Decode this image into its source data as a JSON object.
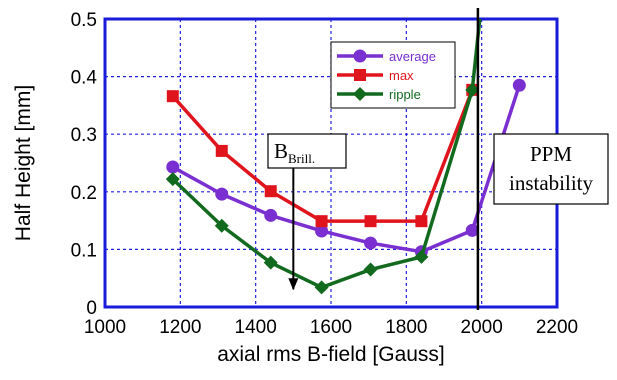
{
  "chart_data": {
    "type": "line",
    "xlabel": "axial rms B-field [Gauss]",
    "ylabel": "Half Height [mm]",
    "xlim": [
      1000,
      2200
    ],
    "ylim": [
      0,
      0.5
    ],
    "xticks": [
      1000,
      1200,
      1400,
      1600,
      1800,
      2000,
      2200
    ],
    "yticks": [
      0,
      0.1,
      0.2,
      0.3,
      0.4,
      0.5
    ],
    "xtick_labels": [
      "1000",
      "1200",
      "1400",
      "1600",
      "1800",
      "2000",
      "2200"
    ],
    "ytick_labels": [
      "0",
      "0.1",
      "0.2",
      "0.3",
      "0.4",
      "0.5"
    ],
    "grid": true,
    "legend_position": "top-center",
    "series": [
      {
        "name": "average",
        "color": "#7a2fd0",
        "marker": "circle",
        "x": [
          1180,
          1310,
          1440,
          1575,
          1705,
          1840,
          1975,
          2100
        ],
        "y": [
          0.243,
          0.196,
          0.159,
          0.132,
          0.111,
          0.096,
          0.133,
          0.385
        ]
      },
      {
        "name": "max",
        "color": "#e0141c",
        "marker": "square",
        "x": [
          1180,
          1310,
          1440,
          1575,
          1705,
          1840,
          1975
        ],
        "y": [
          0.366,
          0.271,
          0.201,
          0.149,
          0.149,
          0.149,
          0.377
        ]
      },
      {
        "name": "ripple",
        "color": "#126a1e",
        "marker": "diamond",
        "x": [
          1180,
          1310,
          1440,
          1575,
          1705,
          1840,
          1975,
          1995
        ],
        "y": [
          0.222,
          0.141,
          0.077,
          0.034,
          0.065,
          0.087,
          0.377,
          0.5
        ],
        "markers_on": [
          true,
          true,
          true,
          true,
          true,
          true,
          true,
          false
        ]
      }
    ],
    "annotations": {
      "bbrill": {
        "label_main": "B",
        "label_sub": "Brill.",
        "arrow_x": 1500,
        "arrow_from_y": 0.247,
        "arrow_to_y": 0.01
      },
      "ppm": {
        "line1": "PPM",
        "line2": "instability",
        "line_x": 1990
      }
    }
  }
}
